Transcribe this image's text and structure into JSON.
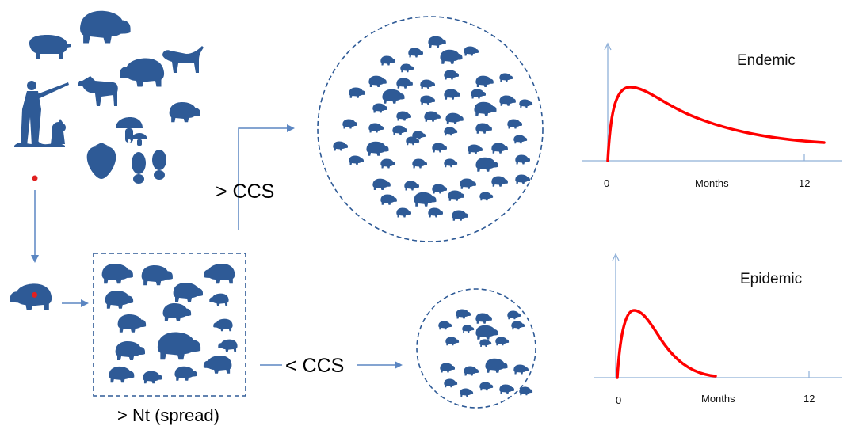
{
  "labels": {
    "above_ccs": "> CCS",
    "below_ccs": "< CCS",
    "spread": "> Nt (spread)"
  },
  "colors": {
    "animal": "#2e5a96",
    "arrow": "#5b86c2",
    "curve": "#ff0000",
    "axis": "#8fb0d8",
    "infection_dot": "#e02020"
  },
  "icons": [
    "pig-icon",
    "wild-boar-icon",
    "hunter-icon",
    "dog-icon",
    "calf-icon",
    "mushroom-icon",
    "strawberry-icon",
    "footprints-icon",
    "infected-boar-icon"
  ],
  "charts": [
    {
      "type": "line",
      "title": "Endemic",
      "xlabel": "Months",
      "x_ticks": [
        "0",
        "12"
      ],
      "shape": "rapid rise to an early peak, then slow decline that persists through 12 months"
    },
    {
      "type": "line",
      "title": "Epidemic",
      "xlabel": "Months",
      "x_ticks": [
        "0",
        "12"
      ],
      "shape": "rapid rise to an early peak, then quick decline to zero well before 12 months"
    }
  ]
}
